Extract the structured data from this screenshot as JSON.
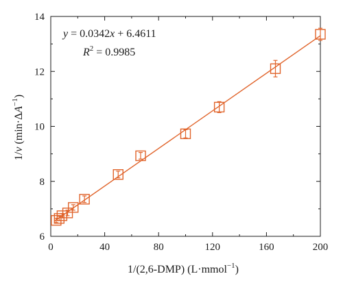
{
  "colors": {
    "series": "#e0632a",
    "axis": "#1a1a1a",
    "background": "#ffffff"
  },
  "chart_data": {
    "type": "scatter",
    "title": "",
    "xlabel": "1/(2,6-DMP) (L·mmol⁻¹)",
    "ylabel": "1/v (min·ΔA⁻¹)",
    "xlim": [
      0,
      200
    ],
    "ylim": [
      6,
      14
    ],
    "xticks": [
      0,
      40,
      80,
      120,
      160,
      200
    ],
    "yticks": [
      6,
      8,
      10,
      12,
      14
    ],
    "xtick_labels": [
      "0",
      "40",
      "80",
      "120",
      "160",
      "200"
    ],
    "ytick_labels": [
      "6",
      "8",
      "10",
      "12",
      "14"
    ],
    "grid": false,
    "legend": null,
    "series": [
      {
        "marker": "open-square",
        "points": [
          {
            "x": 4,
            "y": 6.58,
            "err": 0.08
          },
          {
            "x": 6.25,
            "y": 6.65,
            "err": 0.08
          },
          {
            "x": 8.33,
            "y": 6.75,
            "err": 0.08
          },
          {
            "x": 12.5,
            "y": 6.85,
            "err": 0.1
          },
          {
            "x": 16.67,
            "y": 7.05,
            "err": 0.1
          },
          {
            "x": 25,
            "y": 7.35,
            "err": 0.12
          },
          {
            "x": 50,
            "y": 8.25,
            "err": 0.12
          },
          {
            "x": 66.67,
            "y": 8.93,
            "err": 0.12
          },
          {
            "x": 100,
            "y": 9.73,
            "err": 0.15
          },
          {
            "x": 125,
            "y": 10.7,
            "err": 0.2
          },
          {
            "x": 166.67,
            "y": 12.1,
            "err": 0.3
          },
          {
            "x": 200,
            "y": 13.35,
            "err": 0.22
          }
        ]
      }
    ],
    "fit": {
      "slope": 0.0342,
      "intercept": 6.4611
    },
    "annotations": {
      "equation": "y = 0.0342x + 6.4611",
      "r2": "R² = 0.9985"
    }
  }
}
